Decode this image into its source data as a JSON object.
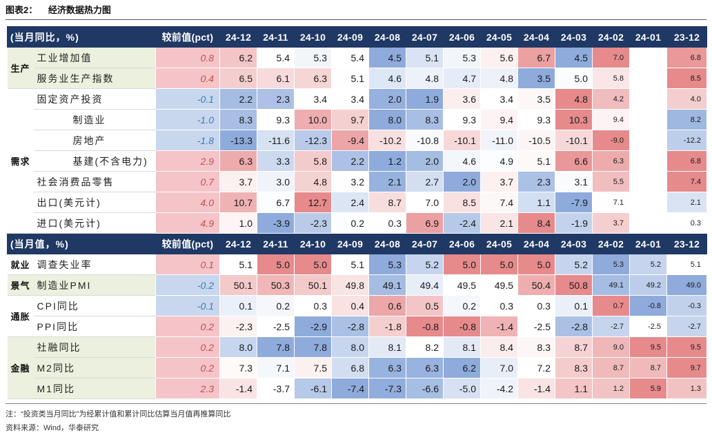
{
  "colors": {
    "header_bg": "#1F3864",
    "header_text": "#FFFFFF",
    "scale_low": "#8EABDC",
    "scale_mid": "#FFFFFF",
    "scale_high": "#E68A8C",
    "delta_pos_bg": "#F5C4C9",
    "delta_neg_bg": "#C8D7ED",
    "delta_pos_text": "#C0504D",
    "delta_neg_text": "#3F7AB5",
    "empty_bg": "#FFFFFF"
  },
  "chart_data": {
    "type": "heatmap",
    "figure_label": "图表2：",
    "title": "经济数据热力图",
    "delta_header": "较前值(pct)",
    "columns": [
      "24-12",
      "24-11",
      "24-10",
      "24-09",
      "24-08",
      "24-07",
      "24-06",
      "24-05",
      "24-04",
      "24-03",
      "24-02",
      "24-01",
      "23-12"
    ],
    "sections": [
      {
        "header": "(当月同比，%)",
        "groups": [
          {
            "name": "生产",
            "bg": "#EBF1DE",
            "rows": [
              {
                "label": "工业增加值",
                "delta": 0.8,
                "values": [
                  6.2,
                  5.4,
                  5.3,
                  5.4,
                  4.5,
                  5.1,
                  5.3,
                  5.6,
                  6.7,
                  4.5,
                  7.0,
                  null,
                  6.8
                ]
              },
              {
                "label": "服务业生产指数",
                "delta": 0.4,
                "values": [
                  6.5,
                  6.1,
                  6.3,
                  5.1,
                  4.6,
                  4.8,
                  4.7,
                  4.8,
                  3.5,
                  5.0,
                  5.8,
                  null,
                  8.5
                ]
              }
            ]
          },
          {
            "name": "需求",
            "bg": "#FFFFFF",
            "rows": [
              {
                "label": "固定资产投资",
                "delta": -0.1,
                "values": [
                  2.2,
                  2.3,
                  3.4,
                  3.4,
                  2.0,
                  1.9,
                  3.6,
                  3.4,
                  3.5,
                  4.8,
                  4.2,
                  null,
                  4.0
                ]
              },
              {
                "label": "制造业",
                "sub_item": true,
                "delta": -1.0,
                "values": [
                  8.3,
                  9.3,
                  10.0,
                  9.7,
                  8.0,
                  8.3,
                  9.3,
                  9.4,
                  9.3,
                  10.3,
                  9.4,
                  null,
                  8.2
                ]
              },
              {
                "label": "房地产",
                "sub_item": true,
                "delta": -1.8,
                "values": [
                  -13.3,
                  -11.6,
                  -12.3,
                  -9.4,
                  -10.2,
                  -10.8,
                  -10.1,
                  -11.0,
                  -10.5,
                  -10.1,
                  -9.0,
                  null,
                  -12.2
                ]
              },
              {
                "label": "基建(不含电力)",
                "sub_item": true,
                "delta": 2.9,
                "values": [
                  6.3,
                  3.3,
                  5.8,
                  2.2,
                  1.2,
                  2.0,
                  4.6,
                  4.9,
                  5.1,
                  6.6,
                  6.3,
                  null,
                  6.8
                ]
              },
              {
                "label": "社会消费品零售",
                "delta": 0.7,
                "values": [
                  3.7,
                  3.0,
                  4.8,
                  3.2,
                  2.1,
                  2.7,
                  2.0,
                  3.7,
                  2.3,
                  3.1,
                  5.5,
                  null,
                  7.4
                ]
              },
              {
                "label": "出口(美元计)",
                "delta": 4.0,
                "values": [
                  10.7,
                  6.7,
                  12.7,
                  2.4,
                  8.7,
                  7.0,
                  8.5,
                  7.4,
                  1.1,
                  -7.9,
                  7.1,
                  null,
                  2.1
                ]
              },
              {
                "label": "进口(美元计)",
                "delta": 4.9,
                "values": [
                  1.0,
                  -3.9,
                  -2.3,
                  0.2,
                  0.3,
                  6.9,
                  -2.4,
                  2.1,
                  8.4,
                  -1.9,
                  3.7,
                  null,
                  0.3
                ]
              }
            ]
          }
        ]
      },
      {
        "header": "(当月值，%)",
        "groups": [
          {
            "name": "就业",
            "bg": "#FFFFFF",
            "rows": [
              {
                "label": "调查失业率",
                "reverse_scale": true,
                "delta": 0.1,
                "values": [
                  5.1,
                  5.0,
                  5.0,
                  5.1,
                  5.3,
                  5.2,
                  5.0,
                  5.0,
                  5.0,
                  5.2,
                  5.3,
                  5.2,
                  5.1
                ]
              }
            ]
          },
          {
            "name": "景气",
            "bg": "#EBF1DE",
            "rows": [
              {
                "label": "制造业PMI",
                "delta": -0.2,
                "values": [
                  50.1,
                  50.3,
                  50.1,
                  49.8,
                  49.1,
                  49.4,
                  49.5,
                  49.5,
                  50.4,
                  50.8,
                  49.1,
                  49.2,
                  49.0
                ]
              }
            ]
          },
          {
            "name": "通胀",
            "bg": "#FFFFFF",
            "rows": [
              {
                "label": "CPI同比",
                "delta": -0.1,
                "values": [
                  0.1,
                  0.2,
                  0.3,
                  0.4,
                  0.6,
                  0.5,
                  0.2,
                  0.3,
                  0.3,
                  0.1,
                  0.7,
                  -0.8,
                  -0.3
                ]
              },
              {
                "label": "PPI同比",
                "delta": 0.2,
                "values": [
                  -2.3,
                  -2.5,
                  -2.9,
                  -2.8,
                  -1.8,
                  -0.8,
                  -0.8,
                  -1.4,
                  -2.5,
                  -2.8,
                  -2.7,
                  -2.5,
                  -2.7
                ]
              }
            ]
          },
          {
            "name": "金融",
            "bg": "#EBF1DE",
            "rows": [
              {
                "label": "社融同比",
                "delta": 0.2,
                "values": [
                  8.0,
                  7.8,
                  7.8,
                  8.0,
                  8.1,
                  8.2,
                  8.1,
                  8.4,
                  8.3,
                  8.7,
                  9.0,
                  9.5,
                  9.5
                ]
              },
              {
                "label": "M2同比",
                "delta": 0.2,
                "values": [
                  7.3,
                  7.1,
                  7.5,
                  6.8,
                  6.3,
                  6.3,
                  6.2,
                  7.0,
                  7.2,
                  8.3,
                  8.7,
                  8.7,
                  9.7
                ]
              },
              {
                "label": "M1同比",
                "delta": 2.3,
                "values": [
                  -1.4,
                  -3.7,
                  -6.1,
                  -7.4,
                  -7.3,
                  -6.6,
                  -5.0,
                  -4.2,
                  -1.4,
                  1.1,
                  1.2,
                  5.9,
                  1.3
                ]
              }
            ]
          }
        ]
      }
    ]
  },
  "footer": {
    "note": "注：“投资类当月同比”为经累计值和累计同比估算当月值再推算同比",
    "source": "资料来源：Wind，华泰研究"
  }
}
